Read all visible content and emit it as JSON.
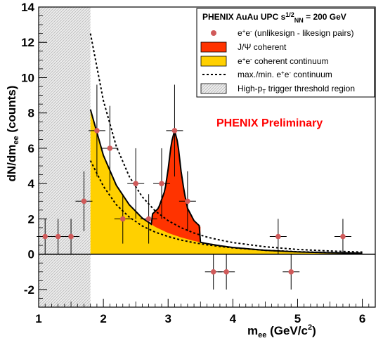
{
  "chart_data": {
    "type": "scatter",
    "xlabel": "m_ee (GeV/c^2)",
    "ylabel": "dN/dm_ee (counts)",
    "xlim": [
      1,
      6.2
    ],
    "ylim": [
      -3,
      14
    ],
    "x_ticks": [
      1,
      2,
      3,
      4,
      5,
      6
    ],
    "y_ticks": [
      -2,
      0,
      2,
      4,
      6,
      8,
      10,
      12,
      14
    ],
    "annotation": "PHENIX Preliminary",
    "annotation_color": "#ff0000",
    "legend": {
      "placement": "top-right",
      "title": "PHENIX AuAu UPC s_NN^1/2 = 200 GeV",
      "entries": [
        {
          "label": "e+e- (unlikesign - likesign pairs)",
          "style": "marker",
          "color": "#d05a5a"
        },
        {
          "label": "J/Psi coherent",
          "style": "fill",
          "color": "#ff3300"
        },
        {
          "label": "e+e- coherent continuum",
          "style": "fill",
          "color": "#ffd000"
        },
        {
          "label": "max./min. e+e- continuum",
          "style": "dashed",
          "color": "#000000"
        },
        {
          "label": "High-pT trigger threshold region",
          "style": "hatch",
          "color": "#d8d8d8"
        }
      ]
    },
    "trigger_threshold_region": {
      "x_range": [
        1,
        1.8
      ]
    },
    "series": [
      {
        "name": "e+e- (unlikesign - likesign pairs)",
        "type": "scatter",
        "color": "#d05a5a",
        "x": [
          1.1,
          1.3,
          1.5,
          1.7,
          1.9,
          2.1,
          2.3,
          2.5,
          2.7,
          2.9,
          3.1,
          3.3,
          3.7,
          3.9,
          4.7,
          4.9,
          5.7
        ],
        "y": [
          1,
          1,
          1,
          3,
          7,
          6,
          2,
          4,
          2,
          4,
          7,
          3,
          -1,
          -1,
          1,
          -1,
          1
        ],
        "yerr": [
          1,
          1,
          1,
          1.7,
          2.6,
          2.4,
          1.4,
          2,
          1.4,
          2,
          2.6,
          1.7,
          1,
          1,
          1,
          1,
          1
        ]
      },
      {
        "name": "J/Psi coherent",
        "type": "area",
        "color": "#ff3300",
        "x": [
          2.75,
          2.85,
          2.95,
          3.0,
          3.05,
          3.1,
          3.15,
          3.2,
          3.25,
          3.3,
          3.4,
          3.5
        ],
        "y": [
          2.25,
          2.6,
          3.6,
          4.8,
          6.3,
          7.0,
          6.3,
          4.7,
          3.5,
          2.6,
          1.9,
          1.55
        ]
      },
      {
        "name": "e+e- coherent continuum",
        "type": "area",
        "color": "#ffd000",
        "x": [
          1.8,
          2.0,
          2.2,
          2.4,
          2.6,
          2.8,
          3.0,
          3.2,
          3.4,
          3.6,
          3.8,
          4.0,
          4.5,
          5.0,
          5.5,
          6.0
        ],
        "y": [
          8.2,
          5.6,
          3.9,
          2.8,
          2.05,
          1.55,
          1.2,
          0.95,
          0.75,
          0.6,
          0.48,
          0.38,
          0.22,
          0.13,
          0.08,
          0.05
        ]
      },
      {
        "name": "max. e+e- continuum",
        "type": "line",
        "dashed": true,
        "color": "#000000",
        "x": [
          1.8,
          2.0,
          2.2,
          2.4,
          2.6,
          2.8,
          3.0,
          3.2,
          3.4,
          3.6,
          3.8,
          4.0,
          4.5,
          5.0,
          5.5,
          6.0
        ],
        "y": [
          12.5,
          8.7,
          6.1,
          4.4,
          3.25,
          2.45,
          1.9,
          1.5,
          1.2,
          0.97,
          0.8,
          0.66,
          0.42,
          0.27,
          0.18,
          0.12
        ]
      },
      {
        "name": "min. e+e- continuum",
        "type": "line",
        "dashed": true,
        "color": "#000000",
        "x": [
          1.8,
          2.0,
          2.2,
          2.4,
          2.6,
          2.8,
          3.0,
          3.2,
          3.4,
          3.6,
          3.8,
          4.0,
          4.5,
          5.0,
          5.5,
          6.0
        ],
        "y": [
          5.3,
          3.85,
          2.8,
          2.1,
          1.6,
          1.25,
          1.0,
          0.8,
          0.65,
          0.53,
          0.44,
          0.36,
          0.22,
          0.14,
          0.09,
          0.06
        ]
      }
    ]
  }
}
